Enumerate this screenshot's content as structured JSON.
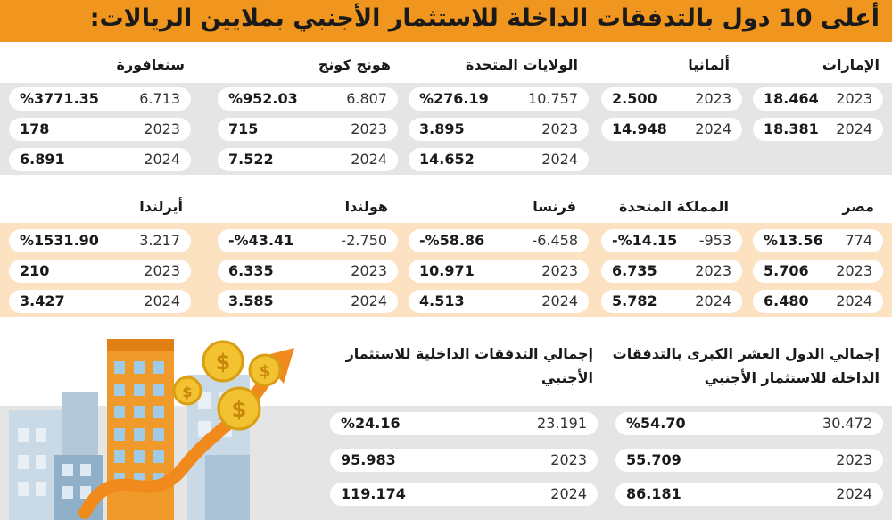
{
  "title": "أعلى 10 دول بالتدفقات الداخلة للاستثمار الأجنبي بملايين الريالات:",
  "section1": [
    {
      "name": "الإمارات",
      "rows": [
        {
          "left": "18.464",
          "right": "2023"
        },
        {
          "left": "18.381",
          "right": "2024"
        }
      ]
    },
    {
      "name": "ألمانيا",
      "rows": [
        {
          "left": "2.500",
          "right": "2023"
        },
        {
          "left": "14.948",
          "right": "2024"
        }
      ]
    },
    {
      "name": "الولايات المتحدة",
      "rows": [
        {
          "left": "%276.19",
          "right": "10.757"
        },
        {
          "left": "3.895",
          "right": "2023"
        },
        {
          "left": "14.652",
          "right": "2024"
        }
      ]
    },
    {
      "name": "هونج كونج",
      "rows": [
        {
          "left": "%952.03",
          "right": "6.807"
        },
        {
          "left": "715",
          "right": "2023"
        },
        {
          "left": "7.522",
          "right": "2024"
        }
      ]
    },
    {
      "name": "سنغافورة",
      "rows": [
        {
          "left": "%3771.35",
          "right": "6.713"
        },
        {
          "left": "178",
          "right": "2023"
        },
        {
          "left": "6.891",
          "right": "2024"
        }
      ]
    }
  ],
  "section2": [
    {
      "name": "مصر",
      "rows": [
        {
          "left": "%13.56",
          "right": "774"
        },
        {
          "left": "5.706",
          "right": "2023"
        },
        {
          "left": "6.480",
          "right": "2024"
        }
      ]
    },
    {
      "name": "المملكة المتحدة",
      "rows": [
        {
          "left": "-%14.15",
          "right": "-953"
        },
        {
          "left": "6.735",
          "right": "2023"
        },
        {
          "left": "5.782",
          "right": "2024"
        }
      ]
    },
    {
      "name": "فرنسا",
      "rows": [
        {
          "left": "-%58.86",
          "right": "-6.458"
        },
        {
          "left": "10.971",
          "right": "2023"
        },
        {
          "left": "4.513",
          "right": "2024"
        }
      ]
    },
    {
      "name": "هولندا",
      "rows": [
        {
          "left": "-%43.41",
          "right": "-2.750"
        },
        {
          "left": "6.335",
          "right": "2023"
        },
        {
          "left": "3.585",
          "right": "2024"
        }
      ]
    },
    {
      "name": "أيرلندا",
      "rows": [
        {
          "left": "%1531.90",
          "right": "3.217"
        },
        {
          "left": "210",
          "right": "2023"
        },
        {
          "left": "3.427",
          "right": "2024"
        }
      ]
    }
  ],
  "totals": [
    {
      "name": "إجمالي الدول العشر الكبرى بالتدفقات الداخلة للاستثمار الأجنبي",
      "rows": [
        {
          "left": "%54.70",
          "right": "30.472"
        },
        {
          "left": "55.709",
          "right": "2023"
        },
        {
          "left": "86.181",
          "right": "2024"
        }
      ]
    },
    {
      "name": "إجمالي التدفقات الداخلية للاستثمار الأجنبي",
      "rows": [
        {
          "left": "%24.16",
          "right": "23.191"
        },
        {
          "left": "95.983",
          "right": "2023"
        },
        {
          "left": "119.174",
          "right": "2024"
        }
      ]
    }
  ],
  "colors": {
    "title_bar": "#f0951d",
    "gray_band": "#e5e5e5",
    "orange_band": "#fde2c2",
    "accent_orange": "#f0951d"
  },
  "icons": [
    "buildings-illustration",
    "dollar-coin-icon",
    "growth-arrow-icon"
  ]
}
